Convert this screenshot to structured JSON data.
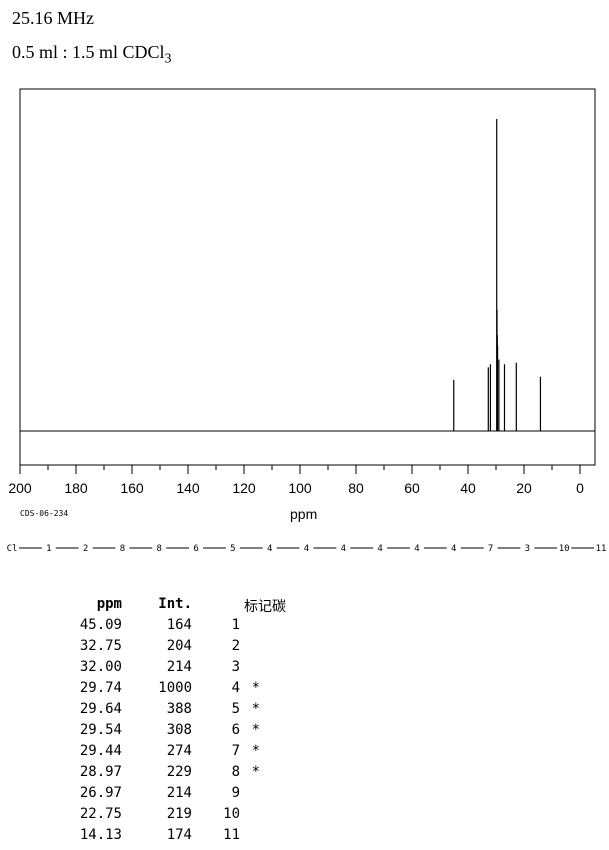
{
  "header": {
    "frequency": "25.16 MHz",
    "solvent_main": "0.5 ml : 1.5 ml CDCl",
    "solvent_sub": "3"
  },
  "spectrum_id": "CDS-06-234",
  "chart_data": {
    "type": "line",
    "title": "",
    "xlabel": "ppm",
    "ylabel": "",
    "xlim": [
      200,
      0
    ],
    "x_ticks": [
      200,
      180,
      160,
      140,
      120,
      100,
      80,
      60,
      40,
      20,
      0
    ],
    "x_minor_step": 10,
    "grid": false,
    "peaks": [
      {
        "ppm": 45.09,
        "int": 164
      },
      {
        "ppm": 32.75,
        "int": 204
      },
      {
        "ppm": 32.0,
        "int": 214
      },
      {
        "ppm": 29.74,
        "int": 1000
      },
      {
        "ppm": 29.64,
        "int": 388
      },
      {
        "ppm": 29.54,
        "int": 308
      },
      {
        "ppm": 29.44,
        "int": 274
      },
      {
        "ppm": 28.97,
        "int": 229
      },
      {
        "ppm": 26.97,
        "int": 214
      },
      {
        "ppm": 22.75,
        "int": 219
      },
      {
        "ppm": 14.13,
        "int": 174
      }
    ]
  },
  "structure_chain": [
    "Cl",
    "1",
    "2",
    "8",
    "8",
    "6",
    "5",
    "4",
    "4",
    "4",
    "4",
    "4",
    "4",
    "7",
    "3",
    "10",
    "11"
  ],
  "table": {
    "headers": {
      "ppm": "ppm",
      "int": "Int.",
      "label": "标记碳"
    },
    "rows": [
      {
        "ppm": "45.09",
        "int": "164",
        "label": "1",
        "mark": ""
      },
      {
        "ppm": "32.75",
        "int": "204",
        "label": "2",
        "mark": ""
      },
      {
        "ppm": "32.00",
        "int": "214",
        "label": "3",
        "mark": ""
      },
      {
        "ppm": "29.74",
        "int": "1000",
        "label": "4",
        "mark": "*"
      },
      {
        "ppm": "29.64",
        "int": "388",
        "label": "5",
        "mark": "*"
      },
      {
        "ppm": "29.54",
        "int": "308",
        "label": "6",
        "mark": "*"
      },
      {
        "ppm": "29.44",
        "int": "274",
        "label": "7",
        "mark": "*"
      },
      {
        "ppm": "28.97",
        "int": "229",
        "label": "8",
        "mark": "*"
      },
      {
        "ppm": "26.97",
        "int": "214",
        "label": "9",
        "mark": ""
      },
      {
        "ppm": "22.75",
        "int": "219",
        "label": "10",
        "mark": ""
      },
      {
        "ppm": "14.13",
        "int": "174",
        "label": "11",
        "mark": ""
      }
    ]
  }
}
